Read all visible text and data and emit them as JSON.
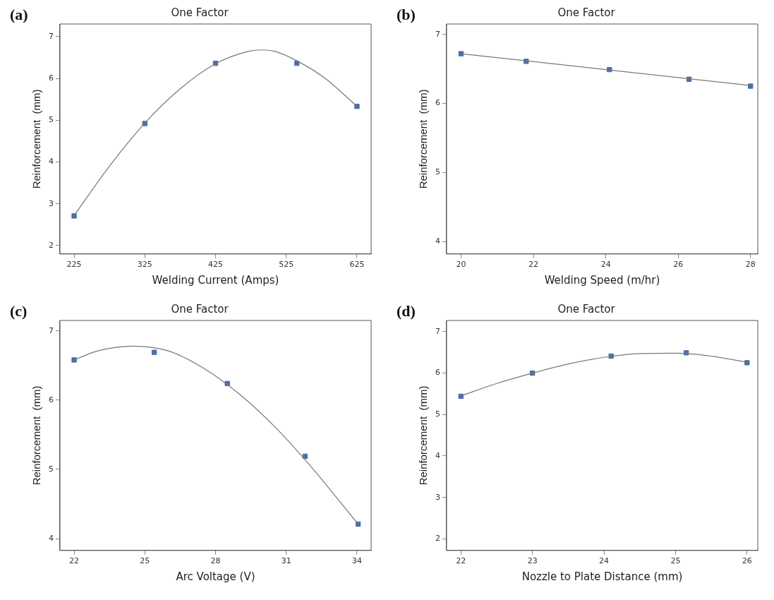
{
  "chart_data": [
    {
      "type": "scatter",
      "title": "One Factor",
      "xlabel": "Welding Current (Amps)",
      "ylabel": "Reinforcement  (mm)",
      "annotations": [
        "(a)"
      ],
      "xlim": [
        205,
        645
      ],
      "xticks": [
        225,
        325,
        425,
        525,
        625
      ],
      "ylim": [
        1.8,
        7.3
      ],
      "yticks": [
        2,
        3,
        4,
        5,
        6,
        7
      ],
      "grid": false,
      "legend": false,
      "marker": "square",
      "series": [
        {
          "type": "line",
          "color": "#777777",
          "marker": "none",
          "x": [
            225,
            275,
            325,
            375,
            425,
            470,
            490,
            510,
            540,
            580,
            625
          ],
          "values": [
            2.72,
            3.9,
            4.93,
            5.75,
            6.35,
            6.64,
            6.68,
            6.64,
            6.42,
            6.0,
            5.33
          ]
        },
        {
          "type": "scatter",
          "color": "#4a6fa5",
          "x": [
            225,
            325,
            425,
            540,
            625
          ],
          "values": [
            2.71,
            4.92,
            6.36,
            6.36,
            5.33
          ]
        }
      ]
    },
    {
      "type": "scatter",
      "title": "One Factor",
      "xlabel": "Welding Speed (m/hr)",
      "ylabel": "Reinforcement  (mm)",
      "annotations": [
        "(b)"
      ],
      "xlim": [
        19.6,
        28.2
      ],
      "xticks": [
        20,
        22,
        24,
        26,
        28
      ],
      "ylim": [
        3.82,
        7.15
      ],
      "yticks": [
        4,
        5,
        6,
        7
      ],
      "grid": false,
      "legend": false,
      "marker": "square",
      "series": [
        {
          "type": "line",
          "color": "#777777",
          "marker": "none",
          "x": [
            20,
            24,
            28
          ],
          "values": [
            6.72,
            6.49,
            6.26
          ]
        },
        {
          "type": "scatter",
          "color": "#4a6fa5",
          "x": [
            20,
            21.8,
            24.1,
            26.3,
            28
          ],
          "values": [
            6.72,
            6.61,
            6.49,
            6.35,
            6.25
          ]
        }
      ]
    },
    {
      "type": "scatter",
      "title": "One Factor",
      "xlabel": "Arc Voltage (V)",
      "ylabel": "Reinforcement  (mm)",
      "annotations": [
        "(c)"
      ],
      "xlim": [
        21.4,
        34.6
      ],
      "xticks": [
        22,
        25,
        28,
        31,
        34
      ],
      "ylim": [
        3.83,
        7.15
      ],
      "yticks": [
        4,
        5,
        6,
        7
      ],
      "grid": false,
      "legend": false,
      "marker": "square",
      "series": [
        {
          "type": "line",
          "color": "#777777",
          "marker": "none",
          "x": [
            22,
            23,
            24.5,
            26,
            27.5,
            29,
            30.5,
            32,
            33,
            34.05
          ],
          "values": [
            6.58,
            6.71,
            6.78,
            6.71,
            6.46,
            6.09,
            5.62,
            5.06,
            4.65,
            4.21
          ]
        },
        {
          "type": "scatter",
          "color": "#4a6fa5",
          "x": [
            22,
            25.4,
            28.5,
            31.8,
            34.05
          ],
          "values": [
            6.58,
            6.69,
            6.24,
            5.19,
            4.21
          ]
        }
      ]
    },
    {
      "type": "scatter",
      "title": "One Factor",
      "xlabel": "Nozzle to Plate Distance (mm)",
      "ylabel": "Reinforcement  (mm)",
      "annotations": [
        "(d)"
      ],
      "xlim": [
        21.8,
        26.15
      ],
      "xticks": [
        22,
        23,
        24,
        25,
        26
      ],
      "ylim": [
        1.72,
        7.27
      ],
      "yticks": [
        2,
        3,
        4,
        5,
        6,
        7
      ],
      "grid": false,
      "legend": false,
      "marker": "square",
      "series": [
        {
          "type": "line",
          "color": "#777777",
          "marker": "none",
          "x": [
            22,
            22.5,
            23,
            23.5,
            24,
            24.5,
            25,
            25.5,
            26
          ],
          "values": [
            5.45,
            5.75,
            6.0,
            6.22,
            6.38,
            6.47,
            6.48,
            6.41,
            6.26
          ]
        },
        {
          "type": "scatter",
          "color": "#4a6fa5",
          "x": [
            22,
            23,
            24.1,
            25.15,
            26
          ],
          "values": [
            5.44,
            6.0,
            6.41,
            6.49,
            6.25
          ]
        }
      ]
    }
  ]
}
